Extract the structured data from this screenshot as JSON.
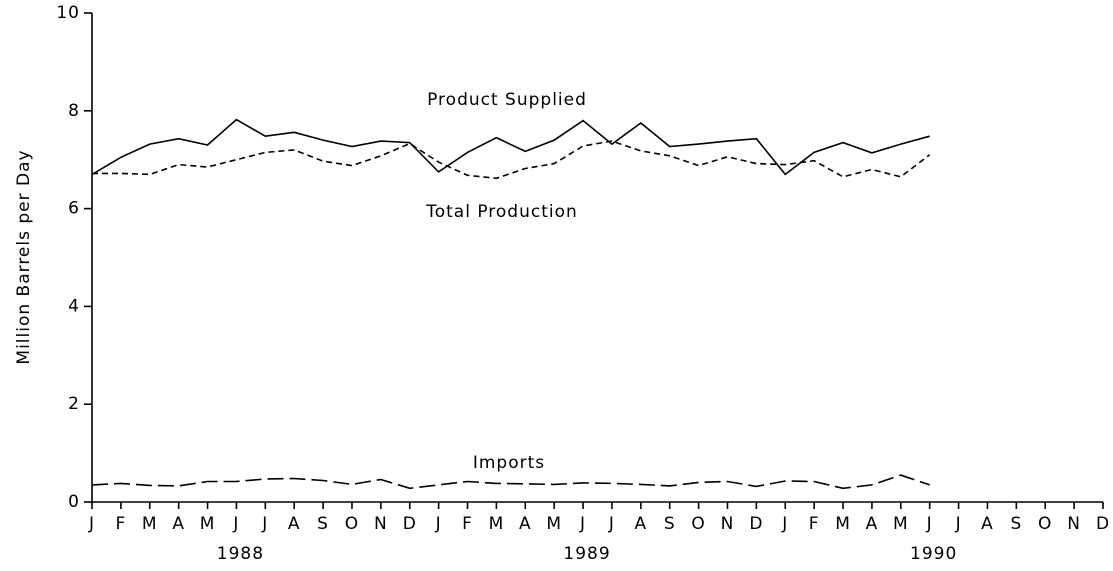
{
  "chart_data": {
    "type": "line",
    "y_label": "Million Barrels per Day",
    "categories": [
      "J",
      "F",
      "M",
      "A",
      "M",
      "J",
      "J",
      "A",
      "S",
      "O",
      "N",
      "D",
      "J",
      "F",
      "M",
      "A",
      "M",
      "J",
      "J",
      "A",
      "S",
      "O",
      "N",
      "D",
      "J",
      "F",
      "M",
      "A",
      "M",
      "J",
      "J",
      "A",
      "S",
      "O",
      "N",
      "D"
    ],
    "years": [
      "1988",
      "1989",
      "1990"
    ],
    "ylim": [
      0,
      10
    ],
    "yticks": [
      0,
      2,
      4,
      6,
      8,
      10
    ],
    "series": [
      {
        "name": "Product Supplied",
        "color": "#000000",
        "style": "solid",
        "values": [
          6.7,
          7.05,
          7.32,
          7.43,
          7.3,
          7.82,
          7.48,
          7.56,
          7.4,
          7.27,
          7.38,
          7.35,
          6.75,
          7.15,
          7.45,
          7.17,
          7.4,
          7.8,
          7.32,
          7.75,
          7.27,
          7.32,
          7.38,
          7.43,
          6.7,
          7.15,
          7.35,
          7.14,
          7.32,
          7.48,
          null,
          null,
          null,
          null,
          null,
          null
        ]
      },
      {
        "name": "Total Production",
        "color": "#000000",
        "style": "dashed",
        "values": [
          6.72,
          6.72,
          6.7,
          6.9,
          6.85,
          7.0,
          7.15,
          7.2,
          6.97,
          6.88,
          7.08,
          7.33,
          6.95,
          6.68,
          6.62,
          6.82,
          6.92,
          7.28,
          7.38,
          7.18,
          7.08,
          6.88,
          7.06,
          6.92,
          6.9,
          6.98,
          6.65,
          6.8,
          6.65,
          7.1,
          null,
          null,
          null,
          null,
          null,
          null
        ]
      },
      {
        "name": "Imports",
        "color": "#000000",
        "style": "longdash",
        "values": [
          0.35,
          0.38,
          0.34,
          0.33,
          0.42,
          0.42,
          0.47,
          0.48,
          0.44,
          0.36,
          0.46,
          0.28,
          0.35,
          0.42,
          0.38,
          0.37,
          0.36,
          0.39,
          0.38,
          0.36,
          0.33,
          0.4,
          0.42,
          0.32,
          0.43,
          0.42,
          0.28,
          0.35,
          0.55,
          0.35,
          null,
          null,
          null,
          null,
          null,
          null
        ]
      }
    ]
  }
}
